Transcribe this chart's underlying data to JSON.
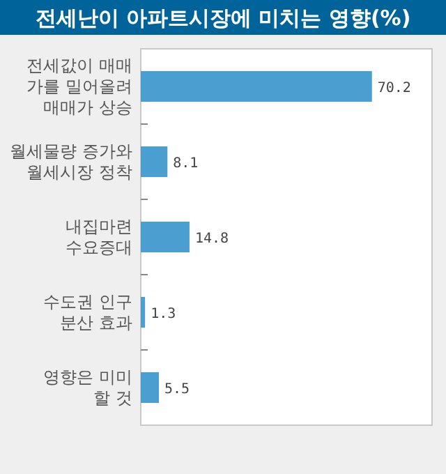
{
  "chart_data": {
    "type": "bar",
    "orientation": "horizontal",
    "title": "전세난이 아파트시장에 미치는 영향(%)",
    "categories": [
      "전세값이 매매\n가를 밀어올려\n매매가 상승",
      "월세물량 증가와\n월세시장 정착",
      "내집마련\n수요증대",
      "수도권 인구\n분산 효과",
      "영향은 미미\n할 것"
    ],
    "values": [
      70.2,
      8.1,
      14.8,
      1.3,
      5.5
    ],
    "colors": [
      "#4a9fd0",
      "#4a9fd0",
      "#4a9fd0",
      "#4a9fd0",
      "#4a9fd0"
    ],
    "data_labels": true
  }
}
